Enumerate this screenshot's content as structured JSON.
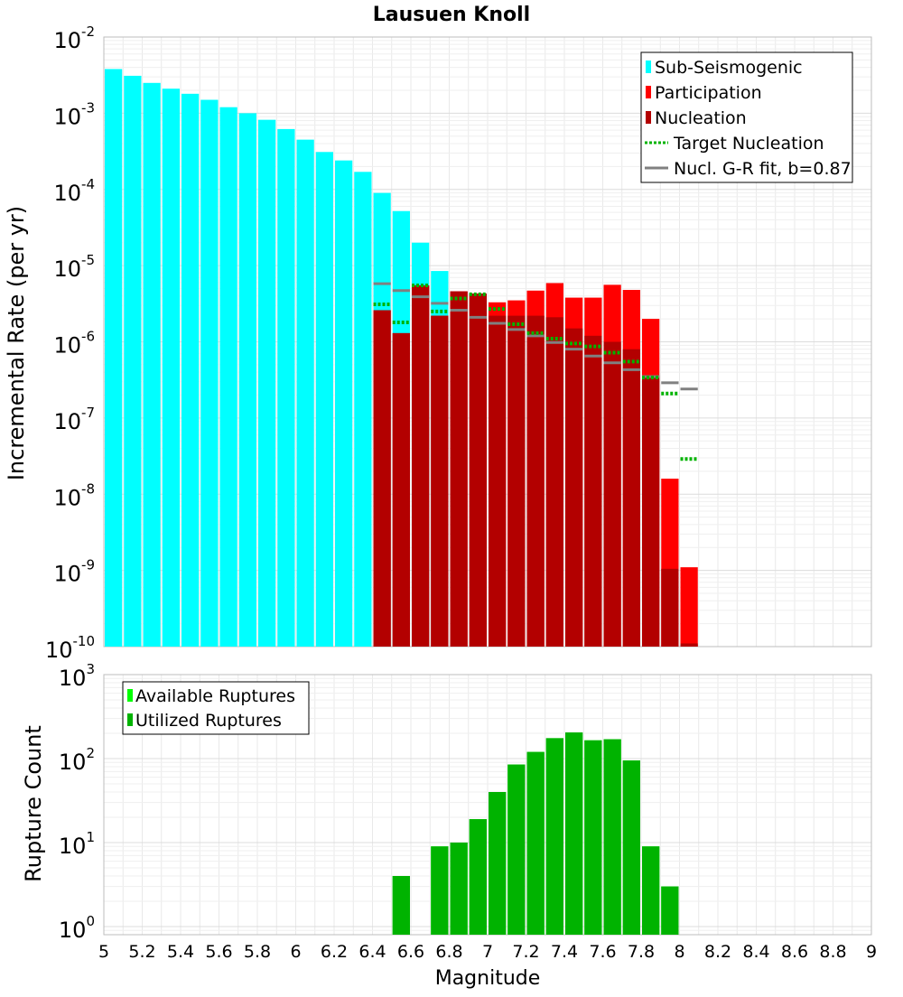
{
  "chart_data": [
    {
      "type": "bar",
      "title": "Lausuen Knoll",
      "ylabel": "Incremental Rate (per yr)",
      "yscale": "log",
      "ylim": [
        1e-10,
        0.01
      ],
      "xlim": [
        5,
        9
      ],
      "y_tick_labels": [
        {
          "base": "10",
          "exp": "-10"
        },
        {
          "base": "10",
          "exp": "-9"
        },
        {
          "base": "10",
          "exp": "-8"
        },
        {
          "base": "10",
          "exp": "-7"
        },
        {
          "base": "10",
          "exp": "-6"
        },
        {
          "base": "10",
          "exp": "-5"
        },
        {
          "base": "10",
          "exp": "-4"
        },
        {
          "base": "10",
          "exp": "-3"
        },
        {
          "base": "10",
          "exp": "-2"
        }
      ],
      "legend": {
        "position": "top-right",
        "entries": [
          "Sub-Seismogenic",
          "Participation",
          "Nucleation",
          "Target Nucleation",
          "Nucl. G-R fit, b=0.87"
        ]
      },
      "grid": true,
      "series": [
        {
          "name": "Sub-Seismogenic",
          "color": "#00ffff",
          "style": "bar",
          "x": [
            5.05,
            5.15,
            5.25,
            5.35,
            5.45,
            5.55,
            5.65,
            5.75,
            5.85,
            5.95,
            6.05,
            6.15,
            6.25,
            6.35,
            6.45,
            6.55,
            6.65,
            6.75
          ],
          "values": [
            0.0038,
            0.0031,
            0.0025,
            0.0021,
            0.0018,
            0.0015,
            0.0012,
            0.001,
            0.00082,
            0.00062,
            0.00045,
            0.00031,
            0.00024,
            0.00017,
            9e-05,
            5.2e-05,
            2e-05,
            8.5e-06
          ]
        },
        {
          "name": "Participation",
          "color": "#ff0000",
          "style": "bar",
          "x": [
            6.45,
            6.55,
            6.65,
            6.75,
            6.85,
            6.95,
            7.05,
            7.15,
            7.25,
            7.35,
            7.45,
            7.55,
            7.65,
            7.75,
            7.85,
            7.95,
            8.05
          ],
          "values": [
            2.6e-06,
            1.3e-06,
            5.5e-06,
            2.2e-06,
            4.6e-06,
            4.3e-06,
            3.3e-06,
            3.5e-06,
            4.7e-06,
            5.9e-06,
            3.8e-06,
            3.8e-06,
            5.6e-06,
            4.8e-06,
            2e-06,
            1.6e-08,
            1.1e-09
          ]
        },
        {
          "name": "Nucleation",
          "color": "#b30000",
          "style": "bar",
          "x": [
            6.45,
            6.55,
            6.65,
            6.75,
            6.85,
            6.95,
            7.05,
            7.15,
            7.25,
            7.35,
            7.45,
            7.55,
            7.65,
            7.75,
            7.85,
            7.95,
            8.05
          ],
          "values": [
            2.6e-06,
            1.3e-06,
            5.5e-06,
            2.2e-06,
            4.6e-06,
            4.3e-06,
            2.2e-06,
            2.2e-06,
            2.2e-06,
            2.1e-06,
            1.5e-06,
            1.2e-06,
            1e-06,
            8e-07,
            3.6e-07,
            1.05e-09,
            1.1e-10
          ]
        },
        {
          "name": "Target Nucleation",
          "color": "#00b300",
          "style": "dotted-step",
          "x": [
            6.45,
            6.55,
            6.65,
            6.75,
            6.85,
            6.95,
            7.05,
            7.15,
            7.25,
            7.35,
            7.45,
            7.55,
            7.65,
            7.75,
            7.85,
            7.95,
            8.05
          ],
          "values": [
            3.1e-06,
            1.8e-06,
            5.5e-06,
            2.5e-06,
            3.7e-06,
            4.2e-06,
            2.7e-06,
            1.7e-06,
            1.3e-06,
            1.1e-06,
            9.5e-07,
            8.7e-07,
            7.2e-07,
            5.5e-07,
            3.4e-07,
            2.1e-07,
            2.9e-08
          ]
        },
        {
          "name": "Nucl. G-R fit, b=0.87",
          "color": "#808080",
          "style": "solid-step",
          "x": [
            6.45,
            6.55,
            6.65,
            6.75,
            6.85,
            6.95,
            7.05,
            7.15,
            7.25,
            7.35,
            7.45,
            7.55,
            7.65,
            7.75,
            7.85,
            7.95,
            8.05
          ],
          "values": [
            5.8e-06,
            4.7e-06,
            3.9e-06,
            3.2e-06,
            2.6e-06,
            2.1e-06,
            1.75e-06,
            1.45e-06,
            1.2e-06,
            9.8e-07,
            8e-07,
            6.5e-07,
            5.3e-07,
            4.3e-07,
            3.5e-07,
            2.9e-07,
            2.4e-07
          ]
        }
      ]
    },
    {
      "type": "bar",
      "ylabel": "Rupture Count",
      "xlabel": "Magnitude",
      "yscale": "log",
      "ylim": [
        0.8,
        1000
      ],
      "xlim": [
        5,
        9
      ],
      "x_tick_labels": [
        "5",
        "5.2",
        "5.4",
        "5.6",
        "5.8",
        "6",
        "6.2",
        "6.4",
        "6.6",
        "6.8",
        "7",
        "7.2",
        "7.4",
        "7.6",
        "7.8",
        "8",
        "8.2",
        "8.4",
        "8.6",
        "8.8",
        "9"
      ],
      "y_tick_labels": [
        {
          "base": "10",
          "exp": "0"
        },
        {
          "base": "10",
          "exp": "1"
        },
        {
          "base": "10",
          "exp": "2"
        },
        {
          "base": "10",
          "exp": "3"
        }
      ],
      "legend": {
        "position": "top-left",
        "entries": [
          "Available Ruptures",
          "Utilized Ruptures"
        ]
      },
      "grid": true,
      "series": [
        {
          "name": "Available Ruptures",
          "color": "#00ff00",
          "x": [
            6.55,
            6.75,
            6.85,
            6.95,
            7.05,
            7.15,
            7.25,
            7.35,
            7.45,
            7.55,
            7.65,
            7.75,
            7.85,
            7.95
          ],
          "values": [
            4,
            9,
            10,
            19,
            40,
            85,
            120,
            175,
            205,
            165,
            170,
            95,
            9,
            3
          ]
        },
        {
          "name": "Utilized Ruptures",
          "color": "#00b300",
          "x": [
            6.55,
            6.75,
            6.85,
            6.95,
            7.05,
            7.15,
            7.25,
            7.35,
            7.45,
            7.55,
            7.65,
            7.75,
            7.85,
            7.95
          ],
          "values": [
            4,
            9,
            10,
            19,
            40,
            85,
            120,
            175,
            205,
            165,
            170,
            95,
            9,
            3
          ]
        }
      ]
    }
  ]
}
